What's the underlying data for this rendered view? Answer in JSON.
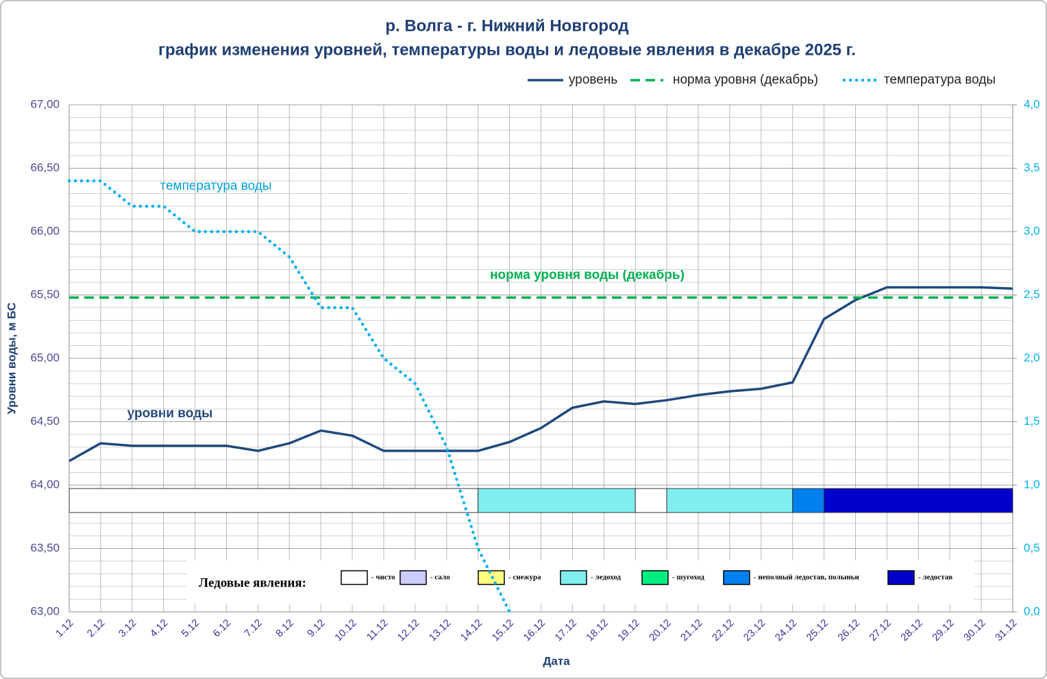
{
  "chart_data": {
    "type": "line",
    "title": "р. Волга - г. Нижний Новгород",
    "subtitle": "график изменения уровней, температуры воды и ледовые явления в декабре 2025  г.",
    "y_label": "Уровни воды, м БС",
    "x_label": "Дата",
    "annotations": [
      "температура воды",
      "уровни воды",
      "норма уровня воды  (декабрь)"
    ],
    "categories": [
      "1.12",
      "2.12",
      "3.12",
      "4.12",
      "5.12",
      "6.12",
      "7.12",
      "8.12",
      "9.12",
      "10.12",
      "11.12",
      "12.12",
      "13.12",
      "14.12",
      "15.12",
      "16.12",
      "17.12",
      "18.12",
      "19.12",
      "20.12",
      "21.12",
      "22.12",
      "23.12",
      "24.12",
      "25.12",
      "26.12",
      "27.12",
      "28.12",
      "29.12",
      "30.12",
      "31.12"
    ],
    "series": [
      {
        "name": "уровень",
        "color": "#1f497d",
        "style": "solid",
        "values": [
          64.19,
          64.33,
          64.31,
          64.31,
          64.31,
          64.31,
          64.27,
          64.33,
          64.43,
          64.39,
          64.27,
          64.27,
          64.27,
          64.27,
          64.34,
          64.45,
          64.61,
          64.66,
          64.64,
          64.67,
          64.71,
          64.74,
          64.76,
          64.81,
          65.31,
          65.46,
          65.56,
          65.56,
          65.56,
          65.56,
          65.55
        ]
      },
      {
        "name": "норма уровня (декабрь)",
        "color": "#00b050",
        "style": "dashed",
        "values": [
          65.48,
          65.48,
          65.48,
          65.48,
          65.48,
          65.48,
          65.48,
          65.48,
          65.48,
          65.48,
          65.48,
          65.48,
          65.48,
          65.48,
          65.48,
          65.48,
          65.48,
          65.48,
          65.48,
          65.48,
          65.48,
          65.48,
          65.48,
          65.48,
          65.48,
          65.48,
          65.48,
          65.48,
          65.48,
          65.48,
          65.48
        ]
      },
      {
        "name": "температура воды",
        "color": "#00b0f0",
        "style": "dotted",
        "axis": "y2",
        "values": [
          3.4,
          3.4,
          3.2,
          3.2,
          3.0,
          3.0,
          3.0,
          2.8,
          2.4,
          2.4,
          2.0,
          1.8,
          1.3,
          0.5,
          0.0,
          null,
          null,
          null,
          null,
          null,
          null,
          null,
          null,
          null,
          null,
          null,
          null,
          null,
          null,
          null,
          null
        ]
      }
    ],
    "ylim": [
      63,
      67
    ],
    "yticks": [
      {
        "value": 63,
        "label": "63,00"
      },
      {
        "value": 63.5,
        "label": "63,50"
      },
      {
        "value": 64,
        "label": "64,00"
      },
      {
        "value": 64.5,
        "label": "64,50"
      },
      {
        "value": 65,
        "label": "65,00"
      },
      {
        "value": 65.5,
        "label": "65,50"
      },
      {
        "value": 66,
        "label": "66,00"
      },
      {
        "value": 66.5,
        "label": "66,50"
      },
      {
        "value": 67,
        "label": "67,00"
      }
    ],
    "y2lim": [
      0,
      4
    ],
    "y2ticks": [
      {
        "value": 0,
        "label": "0,0"
      },
      {
        "value": 0.5,
        "label": "0,5"
      },
      {
        "value": 1,
        "label": "1,0"
      },
      {
        "value": 1.5,
        "label": "1,5"
      },
      {
        "value": 2,
        "label": "2,0"
      },
      {
        "value": 2.5,
        "label": "2,5"
      },
      {
        "value": 3,
        "label": "3,0"
      },
      {
        "value": 3.5,
        "label": "3,5"
      },
      {
        "value": 4,
        "label": "4,0"
      }
    ],
    "y_minor_step": 0.1,
    "grid": true,
    "legend": "top-right",
    "ice_title": "Ледовые явления:",
    "ice_legend": [
      {
        "label": "- чисто",
        "color": "#ffffff"
      },
      {
        "label": "- сало",
        "color": "#ccccff"
      },
      {
        "label": "- снежура",
        "color": "#ffff80"
      },
      {
        "label": "- ледоход",
        "color": "#80eef0"
      },
      {
        "label": "- шугоход",
        "color": "#00ee80"
      },
      {
        "label": "- неполный ледостав, полыньи",
        "color": "#0080f0"
      },
      {
        "label": "- ледостав",
        "color": "#0000cc"
      }
    ],
    "ice_segments": [
      {
        "start": 0,
        "end": 13,
        "kind": 0
      },
      {
        "start": 13,
        "end": 18,
        "kind": 3
      },
      {
        "start": 18,
        "end": 19,
        "kind": 0
      },
      {
        "start": 19,
        "end": 23,
        "kind": 3
      },
      {
        "start": 23,
        "end": 24,
        "kind": 5
      },
      {
        "start": 24,
        "end": 30,
        "kind": 6
      }
    ]
  }
}
